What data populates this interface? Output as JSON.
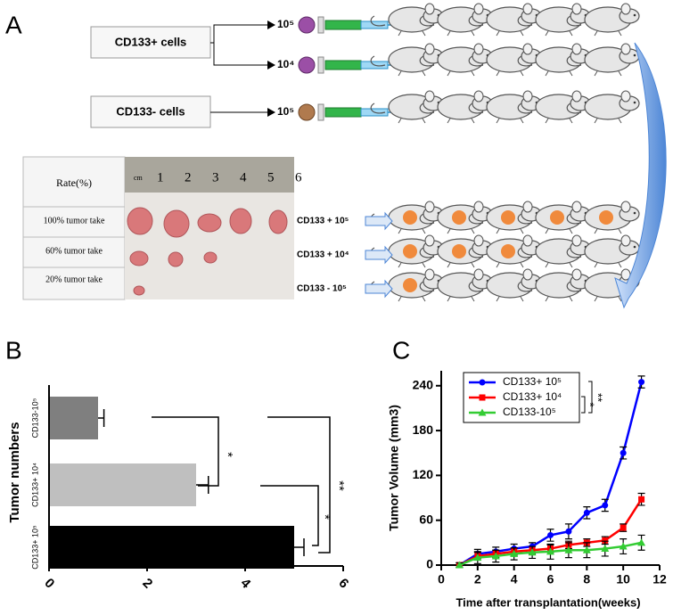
{
  "panel_a": {
    "label": "A",
    "groups": [
      "CD133+ cells",
      "CD133- cells"
    ],
    "doses": [
      "10⁵",
      "10⁴",
      "10⁵"
    ],
    "table": {
      "header": "Rate(%)",
      "rows": [
        "100% tumor take",
        "60% tumor take",
        "20% tumor take"
      ]
    },
    "ruler": [
      "cm",
      "1",
      "2",
      "3",
      "4",
      "5",
      "6"
    ],
    "result_labels": [
      "CD133 + 10⁵",
      "CD133 + 10⁴",
      "CD133 - 10⁵"
    ]
  },
  "chart_data": [
    {
      "type": "hbar",
      "panel_label": "B",
      "ylabel": "Tumor numbers",
      "categories": [
        "CD133-10⁵",
        "CD133+ 10⁴",
        "CD133+ 10⁵"
      ],
      "values": [
        1,
        3,
        5
      ],
      "errors": [
        0.12,
        0.25,
        0.2
      ],
      "colors": [
        "#7f7f7f",
        "#bfbfbf",
        "#000000"
      ],
      "xlim": [
        0,
        6
      ],
      "xticks": [
        0,
        2,
        4,
        6
      ],
      "annotations": [
        "*",
        "*",
        "**"
      ]
    },
    {
      "type": "line",
      "panel_label": "C",
      "xlabel": "Time after transplantation(weeks)",
      "ylabel": "Tumor Volume (mm3)",
      "x": [
        1,
        2,
        3,
        4,
        5,
        6,
        7,
        8,
        9,
        10,
        11
      ],
      "series": [
        {
          "name": "CD133+ 10⁵",
          "color": "#0000ff",
          "marker": "circle",
          "values": [
            0,
            15,
            18,
            22,
            25,
            40,
            45,
            70,
            80,
            150,
            245
          ],
          "errors": [
            3,
            6,
            6,
            6,
            5,
            8,
            10,
            8,
            8,
            8,
            8
          ]
        },
        {
          "name": "CD133+ 10⁴",
          "color": "#ff0000",
          "marker": "square",
          "values": [
            0,
            12,
            15,
            18,
            20,
            22,
            27,
            30,
            33,
            50,
            88
          ],
          "errors": [
            3,
            5,
            5,
            5,
            5,
            5,
            5,
            5,
            5,
            5,
            8
          ]
        },
        {
          "name": "CD133-10⁵",
          "color": "#33cc33",
          "marker": "triangle",
          "values": [
            0,
            10,
            12,
            15,
            17,
            18,
            20,
            20,
            22,
            25,
            30
          ],
          "errors": [
            3,
            8,
            8,
            8,
            8,
            10,
            10,
            10,
            10,
            10,
            10
          ]
        }
      ],
      "xlim": [
        0,
        12
      ],
      "xticks": [
        0,
        2,
        4,
        6,
        8,
        10,
        12
      ],
      "ylim": [
        0,
        260
      ],
      "yticks": [
        0,
        60,
        120,
        180,
        240
      ],
      "legend": "upper-left",
      "annotations": [
        "*",
        "**"
      ]
    }
  ]
}
